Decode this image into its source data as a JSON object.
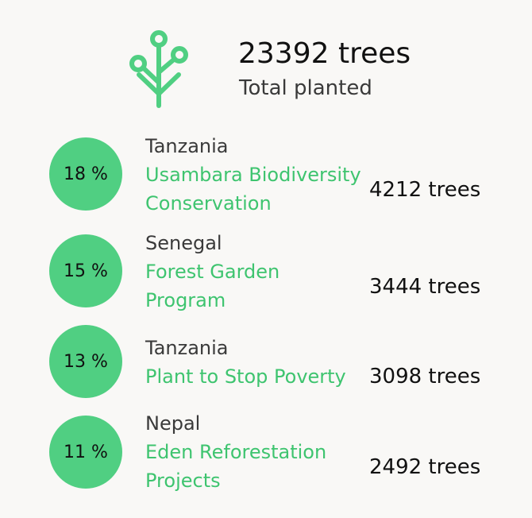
{
  "summary": {
    "icon": "tree-icon",
    "total": "23392 trees",
    "label": "Total planted"
  },
  "colors": {
    "accent": "#50cf82",
    "link": "#3ec46f",
    "background": "#f9f8f6"
  },
  "projects": [
    {
      "percent": "18 %",
      "country": "Tanzania",
      "name_lines": [
        "Usambara Biodiversity",
        "Conservation"
      ],
      "trees": "4212 trees"
    },
    {
      "percent": "15 %",
      "country": "Senegal",
      "name_lines": [
        "Forest Garden",
        "Program"
      ],
      "trees": "3444 trees"
    },
    {
      "percent": "13 %",
      "country": "Tanzania",
      "name_lines": [
        "Plant to Stop Poverty"
      ],
      "trees": "3098 trees"
    },
    {
      "percent": "11 %",
      "country": "Nepal",
      "name_lines": [
        "Eden Reforestation",
        "Projects"
      ],
      "trees": "2492 trees"
    }
  ]
}
